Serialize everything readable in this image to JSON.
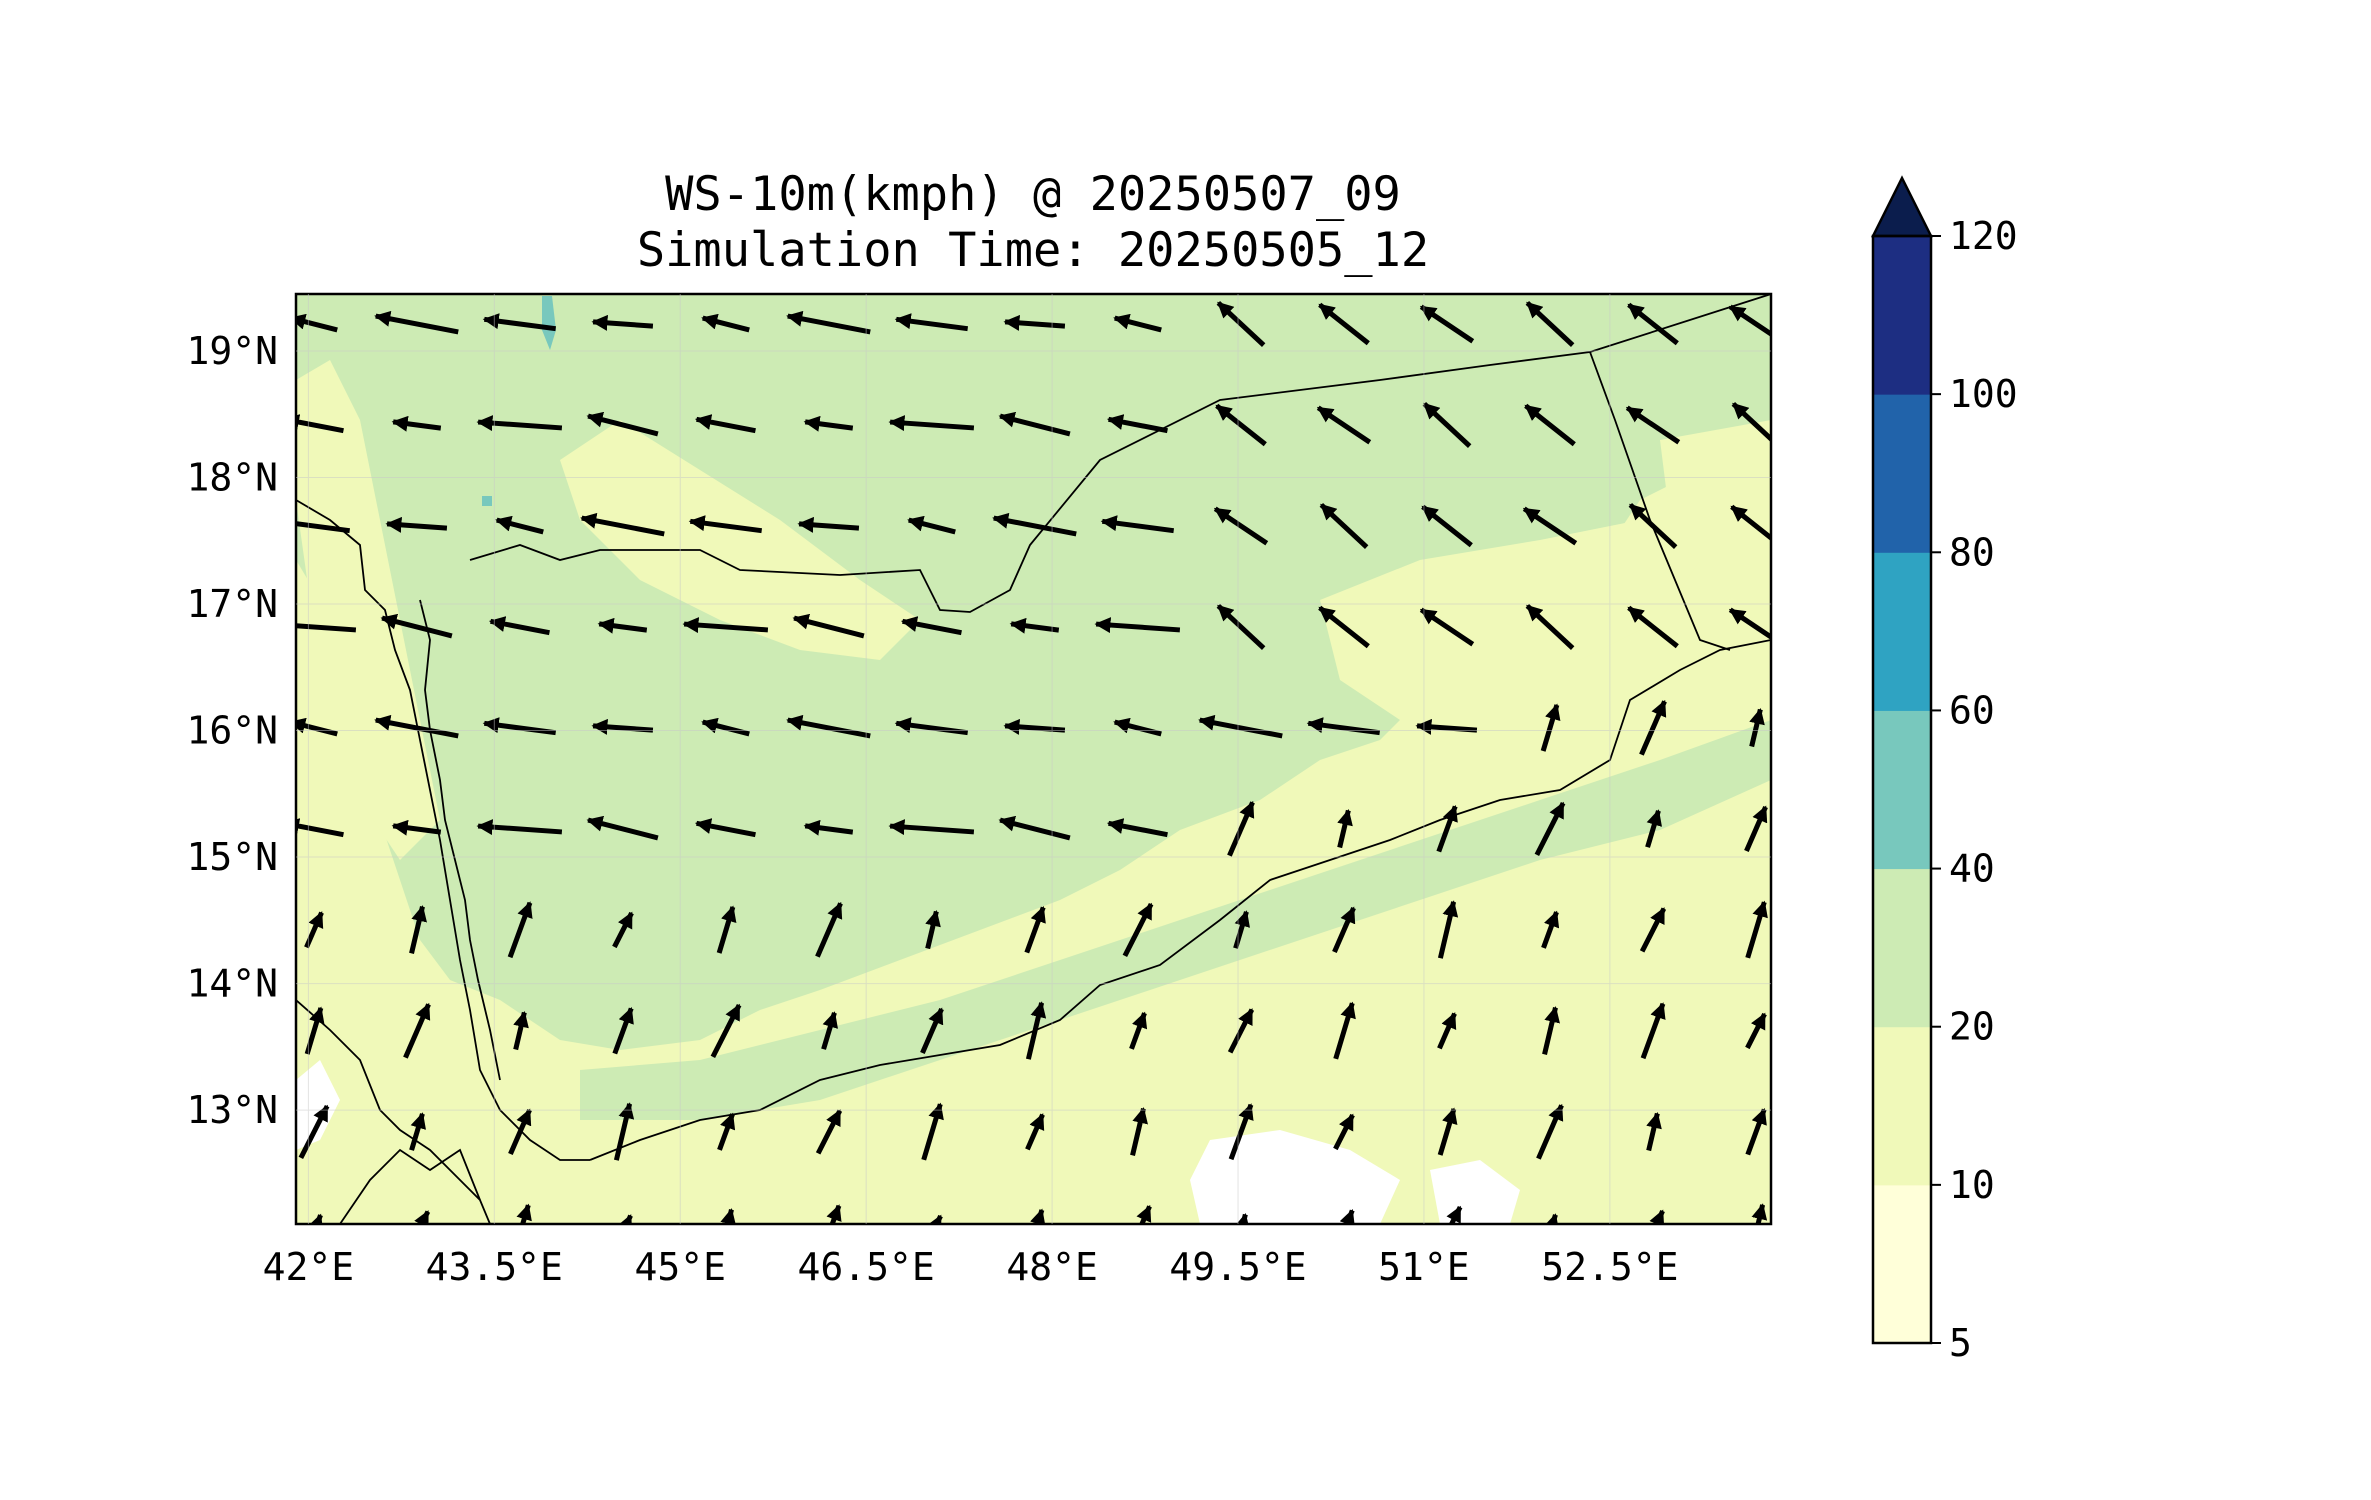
{
  "title": {
    "line1": "WS-10m(kmph) @ 20250507_09",
    "line2": "Simulation Time: 20250505_12"
  },
  "chart_data": {
    "type": "heatmap",
    "variable": "WS-10m(kmph)",
    "x_ticks": [
      "42°E",
      "43.5°E",
      "45°E",
      "46.5°E",
      "48°E",
      "49.5°E",
      "51°E",
      "52.5°E"
    ],
    "y_ticks": [
      "19°N",
      "18°N",
      "17°N",
      "16°N",
      "15°N",
      "14°N",
      "13°N"
    ],
    "lon_range": [
      41.9,
      53.8
    ],
    "lat_range": [
      12.1,
      19.45
    ],
    "colorbar": {
      "levels": [
        "5",
        "10",
        "20",
        "40",
        "60",
        "80",
        "100",
        "120"
      ],
      "colors": [
        "#ffffd9",
        "#f0f9b9",
        "#cdebb4",
        "#78c8bd",
        "#2fa3c2",
        "#2163aa",
        "#1d2e82",
        "#0b1d4d"
      ],
      "extend": "max"
    },
    "colors": {
      "calm": "#ffffff",
      "light": "#f0f9b9",
      "moderate": "#cdebb4",
      "strong": "#78c8bd"
    },
    "wind_vectors_note_free": true
  }
}
